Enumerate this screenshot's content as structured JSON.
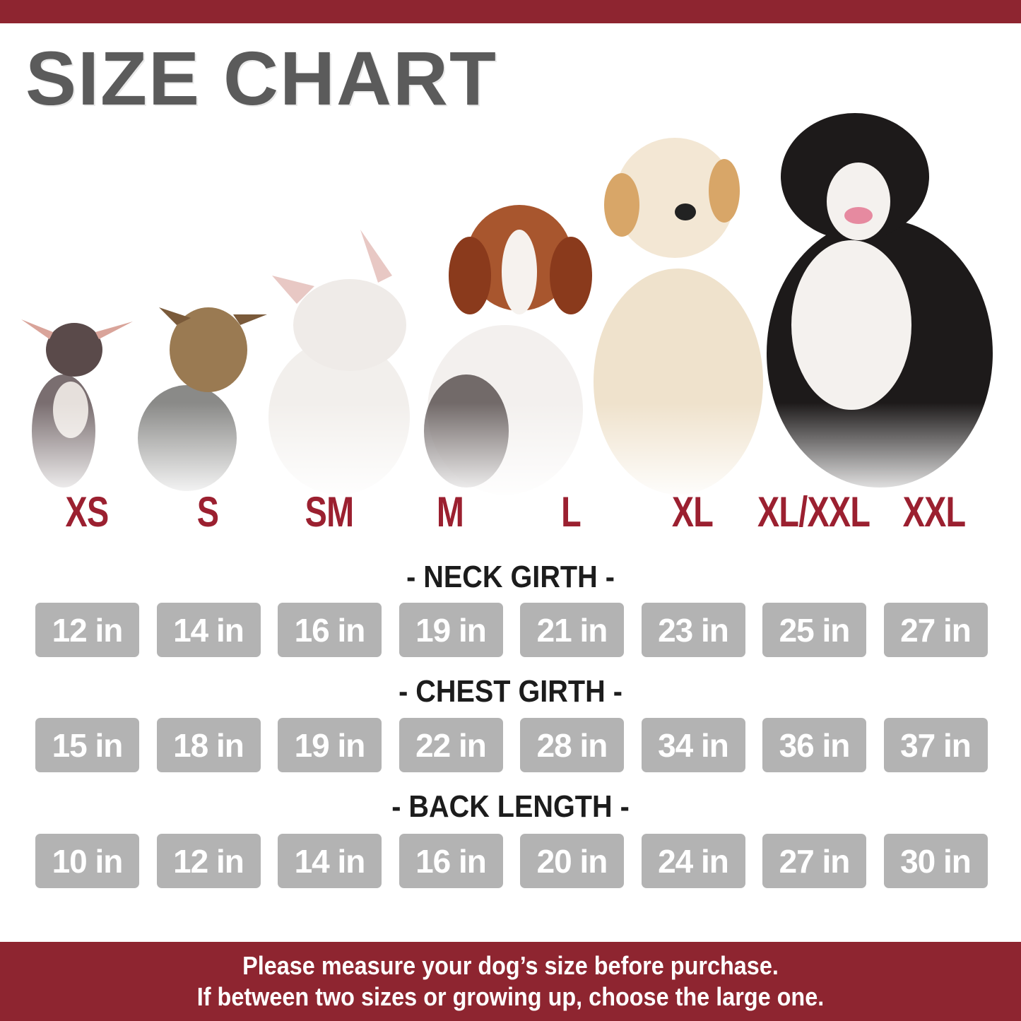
{
  "title": "SIZE CHART",
  "colors": {
    "accent": "#8e2530",
    "size_label": "#9b2030",
    "value_box": "#b3b3b3",
    "title": "#5b5b5b"
  },
  "dogs": [
    "chihuahua-image",
    "yorkshire-terrier-image",
    "french-bulldog-image",
    "beagle-image",
    "golden-retriever-image",
    "bernese-mountain-dog-image"
  ],
  "sizes": [
    "XS",
    "S",
    "SM",
    "M",
    "L",
    "XL",
    "XL/XXL",
    "XXL"
  ],
  "measurements": [
    {
      "heading": "- NECK GIRTH -",
      "values": [
        "12 in",
        "14 in",
        "16 in",
        "19 in",
        "21 in",
        "23 in",
        "25 in",
        "27 in"
      ]
    },
    {
      "heading": "- CHEST GIRTH -",
      "values": [
        "15 in",
        "18 in",
        "19 in",
        "22 in",
        "28 in",
        "34 in",
        "36 in",
        "37 in"
      ]
    },
    {
      "heading": "- BACK LENGTH -",
      "values": [
        "10 in",
        "12 in",
        "14 in",
        "16 in",
        "20 in",
        "24 in",
        "27 in",
        "30 in"
      ]
    }
  ],
  "footer": {
    "line1": "Please measure your dog’s size before purchase.",
    "line2": "If between two sizes or growing up, choose the large one."
  }
}
